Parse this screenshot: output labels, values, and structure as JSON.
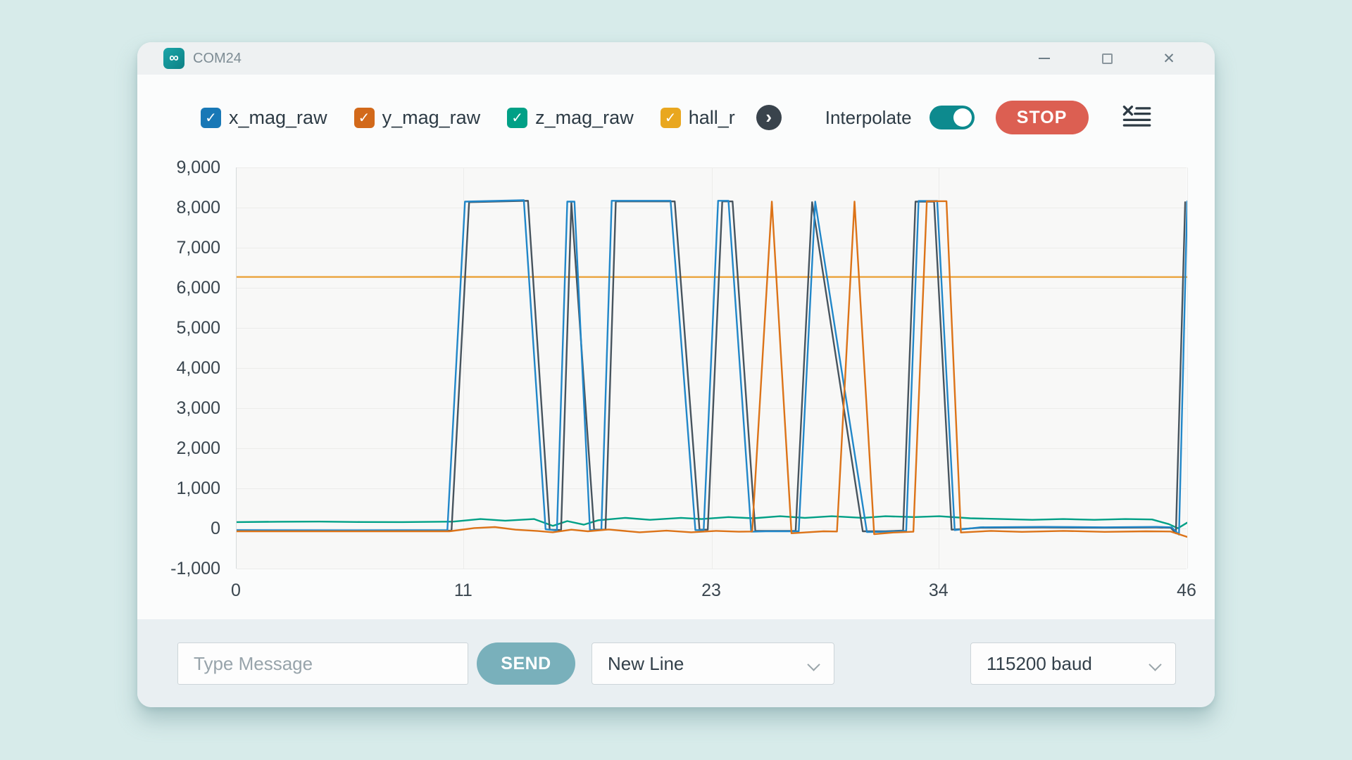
{
  "window": {
    "title": "COM24"
  },
  "icons": {
    "app_glyph": "∞",
    "check_glyph": "✓",
    "overflow_glyph": "›",
    "close_glyph": "✕"
  },
  "legend": {
    "items": [
      {
        "label": "x_mag_raw",
        "color": "#1878b6",
        "checked": true
      },
      {
        "label": "y_mag_raw",
        "color": "#d2691a",
        "checked": true
      },
      {
        "label": "z_mag_raw",
        "color": "#00a086",
        "checked": true
      },
      {
        "label": "hall_r",
        "color": "#e9a71f",
        "checked": true
      }
    ],
    "interpolate_label": "Interpolate",
    "interpolate_on": true,
    "stop_label": "STOP"
  },
  "chart_data": {
    "type": "line",
    "title": "",
    "xlabel": "",
    "ylabel": "",
    "xlim": [
      0,
      46
    ],
    "ylim": [
      -1000,
      9000
    ],
    "x_ticks": [
      0,
      11,
      23,
      34,
      46
    ],
    "x_tick_labels": [
      "0",
      "11",
      "23",
      "34",
      "46"
    ],
    "y_ticks": [
      9000,
      8000,
      7000,
      6000,
      5000,
      4000,
      3000,
      2000,
      1000,
      0,
      -1000
    ],
    "y_tick_labels": [
      "9,000",
      "8,000",
      "7,000",
      "6,000",
      "5,000",
      "4,000",
      "3,000",
      "2,000",
      "1,000",
      "0",
      "-1,000"
    ],
    "grid": true,
    "legend_position": "top",
    "series": [
      {
        "name": "hall_r",
        "color": "#eaa33c",
        "points": [
          [
            0,
            6270
          ],
          [
            10,
            6272
          ],
          [
            20,
            6268
          ],
          [
            30,
            6270
          ],
          [
            40,
            6270
          ],
          [
            46,
            6268
          ]
        ]
      },
      {
        "name": "z_mag_raw",
        "color": "#00a086",
        "points": [
          [
            0,
            160
          ],
          [
            2,
            168
          ],
          [
            4,
            172
          ],
          [
            6,
            162
          ],
          [
            8,
            160
          ],
          [
            10.5,
            172
          ],
          [
            11.8,
            235
          ],
          [
            13,
            195
          ],
          [
            14.4,
            235
          ],
          [
            15.3,
            65
          ],
          [
            16,
            185
          ],
          [
            16.8,
            95
          ],
          [
            17.5,
            205
          ],
          [
            18.8,
            265
          ],
          [
            20,
            215
          ],
          [
            21.5,
            265
          ],
          [
            22.5,
            235
          ],
          [
            23.8,
            285
          ],
          [
            25,
            255
          ],
          [
            26.3,
            305
          ],
          [
            27.5,
            265
          ],
          [
            28.8,
            305
          ],
          [
            30.3,
            265
          ],
          [
            31.4,
            305
          ],
          [
            32.8,
            285
          ],
          [
            34,
            305
          ],
          [
            35.5,
            255
          ],
          [
            37,
            235
          ],
          [
            38.5,
            215
          ],
          [
            40,
            235
          ],
          [
            41.5,
            215
          ],
          [
            43,
            235
          ],
          [
            44.3,
            225
          ],
          [
            45.1,
            110
          ],
          [
            45.55,
            5
          ],
          [
            46,
            145
          ]
        ]
      },
      {
        "name": "series_5",
        "color": "#47545e",
        "points": [
          [
            0,
            -55
          ],
          [
            5,
            -58
          ],
          [
            10.4,
            -55
          ],
          [
            11.25,
            8135
          ],
          [
            14.1,
            8170
          ],
          [
            15.15,
            -30
          ],
          [
            15.7,
            -40
          ],
          [
            16.2,
            8135
          ],
          [
            17.3,
            -30
          ],
          [
            17.85,
            -30
          ],
          [
            18.35,
            8155
          ],
          [
            21.2,
            8155
          ],
          [
            22.4,
            -30
          ],
          [
            22.8,
            -30
          ],
          [
            23.5,
            8155
          ],
          [
            24,
            8155
          ],
          [
            25.1,
            -60
          ],
          [
            25.8,
            -60
          ],
          [
            27.05,
            -60
          ],
          [
            27.85,
            8135
          ],
          [
            30.3,
            -70
          ],
          [
            31.4,
            -70
          ],
          [
            32.25,
            -50
          ],
          [
            32.85,
            8150
          ],
          [
            33.75,
            8150
          ],
          [
            34.6,
            -30
          ],
          [
            36,
            20
          ],
          [
            39,
            25
          ],
          [
            42,
            20
          ],
          [
            44.5,
            25
          ],
          [
            45.2,
            20
          ],
          [
            45.45,
            -120
          ],
          [
            45.9,
            8135
          ]
        ]
      },
      {
        "name": "x_mag_raw",
        "color": "#2187c9",
        "points": [
          [
            0,
            -40
          ],
          [
            5,
            -45
          ],
          [
            10.2,
            -40
          ],
          [
            11.05,
            8150
          ],
          [
            13.9,
            8185
          ],
          [
            14.95,
            -20
          ],
          [
            15.5,
            -50
          ],
          [
            16,
            8150
          ],
          [
            16.35,
            8150
          ],
          [
            17.1,
            -40
          ],
          [
            17.65,
            -40
          ],
          [
            18.15,
            8170
          ],
          [
            21,
            8170
          ],
          [
            22.2,
            -40
          ],
          [
            22.6,
            -40
          ],
          [
            23.3,
            8170
          ],
          [
            23.8,
            8170
          ],
          [
            24.9,
            -80
          ],
          [
            25.6,
            -70
          ],
          [
            27.2,
            -70
          ],
          [
            28,
            8150
          ],
          [
            30.5,
            -90
          ],
          [
            31.5,
            -80
          ],
          [
            32.4,
            -60
          ],
          [
            33,
            8165
          ],
          [
            33.9,
            8165
          ],
          [
            34.75,
            -40
          ],
          [
            36,
            30
          ],
          [
            39,
            40
          ],
          [
            42,
            30
          ],
          [
            44.5,
            40
          ],
          [
            45.25,
            30
          ],
          [
            45.6,
            -150
          ],
          [
            46,
            8155
          ]
        ]
      },
      {
        "name": "y_mag_raw",
        "color": "#dc7318",
        "points": [
          [
            0,
            -70
          ],
          [
            5,
            -72
          ],
          [
            10.3,
            -70
          ],
          [
            11.5,
            10
          ],
          [
            12.5,
            35
          ],
          [
            13.5,
            -30
          ],
          [
            14.5,
            -60
          ],
          [
            15.3,
            -95
          ],
          [
            16.2,
            -30
          ],
          [
            17,
            -70
          ],
          [
            18,
            -25
          ],
          [
            19.5,
            -95
          ],
          [
            20.8,
            -55
          ],
          [
            22,
            -95
          ],
          [
            23.2,
            -60
          ],
          [
            24.3,
            -80
          ],
          [
            24.95,
            -75
          ],
          [
            25.9,
            8150
          ],
          [
            26.85,
            -120
          ],
          [
            27.6,
            -95
          ],
          [
            28.4,
            -70
          ],
          [
            29.05,
            -75
          ],
          [
            29.9,
            8150
          ],
          [
            30.85,
            -140
          ],
          [
            31.8,
            -100
          ],
          [
            32.75,
            -80
          ],
          [
            33.4,
            8160
          ],
          [
            34.35,
            8160
          ],
          [
            35.05,
            -100
          ],
          [
            36.5,
            -60
          ],
          [
            38,
            -85
          ],
          [
            40,
            -60
          ],
          [
            42,
            -85
          ],
          [
            44,
            -70
          ],
          [
            45.2,
            -75
          ],
          [
            46,
            -210
          ]
        ]
      }
    ]
  },
  "bottom_bar": {
    "message_placeholder": "Type Message",
    "send_label": "SEND",
    "line_ending_selected": "New Line",
    "baud_selected": "115200 baud"
  },
  "colors": {
    "background": "#d7ebea",
    "window_bg": "#fbfcfc",
    "titlebar_bg": "#eef1f2",
    "bottombar_bg": "#e9eff2",
    "toggle_on": "#0d8a8e",
    "stop_button": "#dc5f52",
    "send_button": "#79b0bb",
    "text_dark": "#2d3b45",
    "grid_line": "#ececea"
  }
}
